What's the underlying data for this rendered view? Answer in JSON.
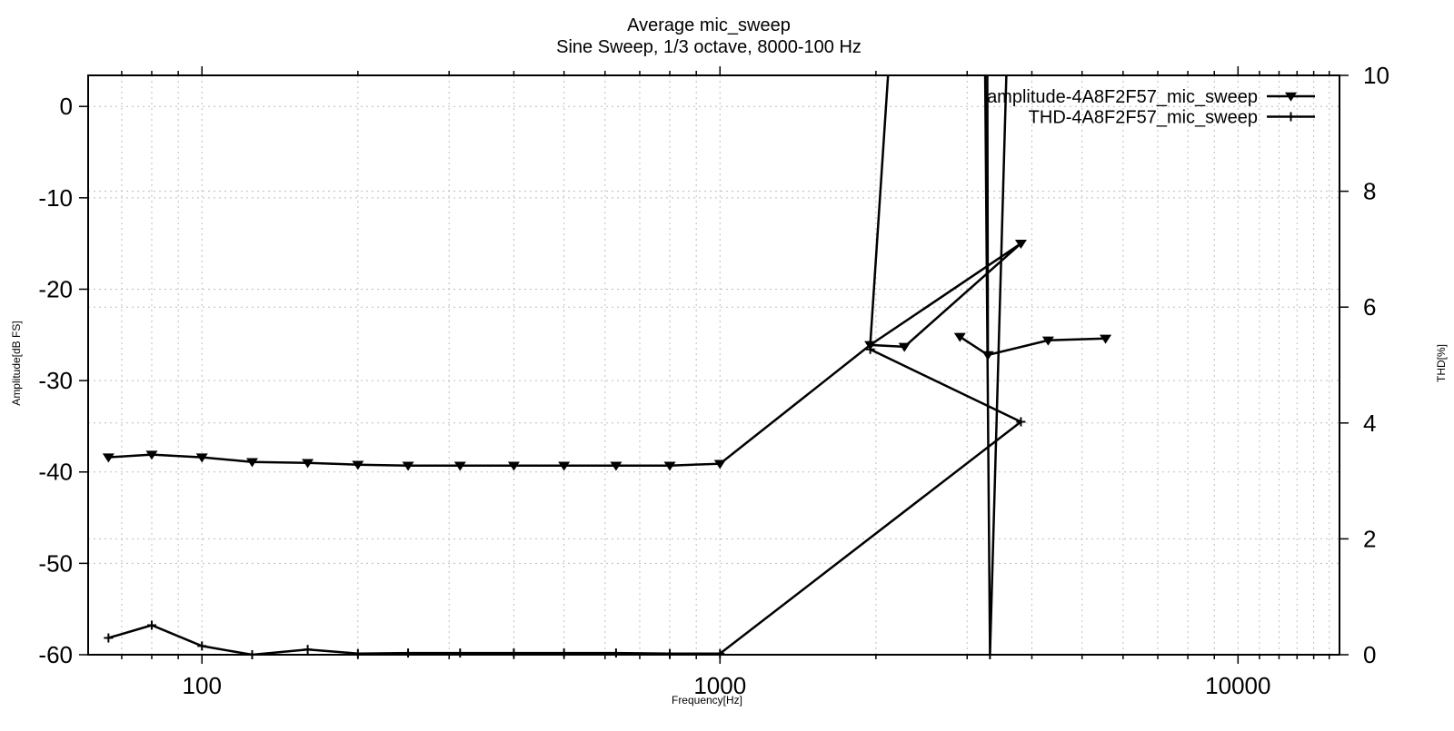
{
  "chart_data": {
    "type": "line",
    "title": "Average mic_sweep",
    "subtitle": "Sine Sweep, 1/3 octave, 8000-100 Hz",
    "xlabel": "Frequency[Hz]",
    "ylabel": "Amplitude[dB FS]",
    "y2label": "THD[%]",
    "x_scale": "log",
    "grid": true,
    "x_range": [
      60.3,
      15700
    ],
    "y_range": [
      -60,
      3.4
    ],
    "y2_range": [
      0,
      10
    ],
    "colors": {
      "line": "#000000",
      "grid": "#bdbdbd",
      "background": "#ffffff"
    },
    "x_major_ticks": [
      {
        "value": 100,
        "label": "100"
      },
      {
        "value": 1000,
        "label": "1000"
      },
      {
        "value": 10000,
        "label": "10000"
      }
    ],
    "x_minor_ticks": [
      60,
      70,
      80,
      90,
      200,
      300,
      400,
      500,
      600,
      700,
      800,
      900,
      2000,
      3000,
      4000,
      5000,
      6000,
      7000,
      8000,
      9000,
      11000,
      12000,
      13000,
      14000,
      15000
    ],
    "y_ticks": [
      {
        "value": 0,
        "label": "0"
      },
      {
        "value": -10,
        "label": "-10"
      },
      {
        "value": -20,
        "label": "-20"
      },
      {
        "value": -30,
        "label": "-30"
      },
      {
        "value": -40,
        "label": "-40"
      },
      {
        "value": -50,
        "label": "-50"
      },
      {
        "value": -60,
        "label": "-60"
      }
    ],
    "y2_ticks": [
      {
        "value": 10,
        "label": "10"
      },
      {
        "value": 8,
        "label": "8"
      },
      {
        "value": 6,
        "label": "6"
      },
      {
        "value": 4,
        "label": "4"
      },
      {
        "value": 2,
        "label": "2"
      },
      {
        "value": 0,
        "label": "0"
      }
    ],
    "legend": {
      "position": "top-right",
      "entries": [
        {
          "label": "amplitude-4A8F2F57_mic_sweep",
          "marker": "triangle-down"
        },
        {
          "label": "THD-4A8F2F57_mic_sweep",
          "marker": "plus"
        }
      ]
    },
    "series": [
      {
        "name": "amplitude-4A8F2F57_mic_sweep",
        "axis": "y1",
        "marker": "triangle-down",
        "points": [
          [
            66,
            -38.4
          ],
          [
            80,
            -38.1
          ],
          [
            100,
            -38.4
          ],
          [
            125,
            -38.9
          ],
          [
            160,
            -39.0
          ],
          [
            200,
            -39.2
          ],
          [
            250,
            -39.3
          ],
          [
            315,
            -39.3
          ],
          [
            400,
            -39.3
          ],
          [
            500,
            -39.3
          ],
          [
            630,
            -39.3
          ],
          [
            800,
            -39.3
          ],
          [
            1000,
            -39.1
          ],
          [
            1950,
            -26.1
          ],
          [
            2270,
            -26.3
          ],
          [
            2905,
            -25.2
          ],
          [
            3290,
            -27.2
          ],
          [
            3810,
            -15.0
          ],
          [
            4300,
            -25.6
          ],
          [
            5550,
            -25.4
          ]
        ],
        "draw_paths": [
          [
            [
              66,
              -38.4
            ],
            [
              80,
              -38.1
            ],
            [
              100,
              -38.4
            ],
            [
              125,
              -38.9
            ],
            [
              160,
              -39.0
            ],
            [
              200,
              -39.2
            ],
            [
              250,
              -39.3
            ],
            [
              315,
              -39.3
            ],
            [
              400,
              -39.3
            ],
            [
              500,
              -39.3
            ],
            [
              630,
              -39.3
            ],
            [
              800,
              -39.3
            ],
            [
              1000,
              -39.1
            ],
            [
              1950,
              -26.1
            ],
            [
              3810,
              -15.0
            ],
            [
              2270,
              -26.3
            ],
            [
              1950,
              -26.1
            ],
            [
              2360,
              45
            ],
            [
              3270,
              45
            ],
            [
              3290,
              -27.2
            ],
            [
              2905,
              -25.2
            ],
            [
              3290,
              -27.2
            ],
            [
              4300,
              -25.6
            ],
            [
              5550,
              -25.4
            ]
          ]
        ]
      },
      {
        "name": "THD-4A8F2F57_mic_sweep",
        "axis": "y2",
        "marker": "plus",
        "points": [
          [
            66,
            0.29
          ],
          [
            80,
            0.51
          ],
          [
            100,
            0.15
          ],
          [
            125,
            0.0
          ],
          [
            160,
            0.09
          ],
          [
            200,
            0.02
          ],
          [
            250,
            0.03
          ],
          [
            315,
            0.03
          ],
          [
            400,
            0.03
          ],
          [
            500,
            0.03
          ],
          [
            630,
            0.03
          ],
          [
            800,
            0.02
          ],
          [
            1000,
            0.02
          ],
          [
            3810,
            4.02
          ],
          [
            1950,
            5.27
          ],
          [
            3320,
            0.0
          ]
        ],
        "draw_paths": [
          [
            [
              66,
              0.29
            ],
            [
              80,
              0.51
            ],
            [
              100,
              0.15
            ],
            [
              125,
              0.0
            ],
            [
              160,
              0.09
            ],
            [
              200,
              0.02
            ],
            [
              250,
              0.03
            ],
            [
              315,
              0.03
            ],
            [
              400,
              0.03
            ],
            [
              500,
              0.03
            ],
            [
              630,
              0.03
            ],
            [
              800,
              0.02
            ],
            [
              1000,
              0.02
            ],
            [
              3810,
              4.02
            ],
            [
              1950,
              5.27
            ]
          ],
          [
            [
              3230,
              13
            ],
            [
              3320,
              0.0
            ],
            [
              3650,
              13
            ]
          ]
        ]
      }
    ]
  }
}
